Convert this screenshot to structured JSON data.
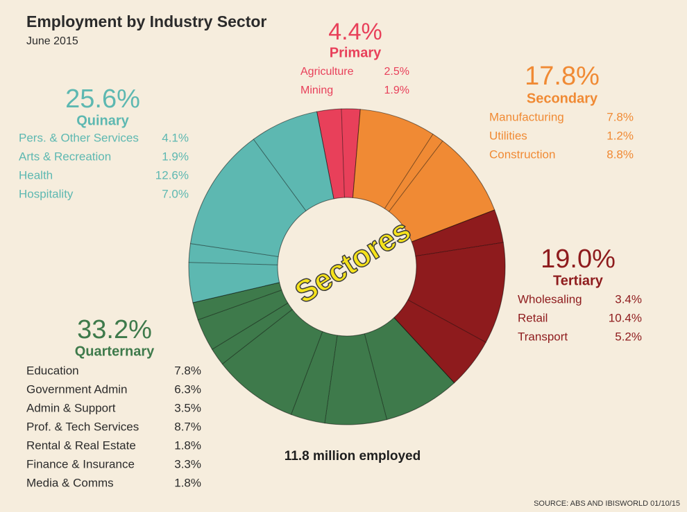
{
  "chart_data": {
    "type": "pie",
    "title": "Employment by Industry Sector",
    "subtitle": "June 2015",
    "center_note": "11.8 million employed",
    "overlay_text": "Sectores",
    "source": "SOURCE: ABS AND IBISWORLD 01/10/15",
    "donut": true,
    "series": [
      {
        "name": "Primary",
        "color": "#e8405a",
        "total": {
          "value": 4.4,
          "label": "4.4%"
        },
        "categories": [
          "Agriculture",
          "Mining"
        ],
        "values": [
          2.5,
          1.9
        ],
        "value_labels": [
          "2.5%",
          "1.9%"
        ]
      },
      {
        "name": "Secondary",
        "color": "#f08a34",
        "total": {
          "value": 17.8,
          "label": "17.8%"
        },
        "categories": [
          "Manufacturing",
          "Utilities",
          "Construction"
        ],
        "values": [
          7.8,
          1.2,
          8.8
        ],
        "value_labels": [
          "7.8%",
          "1.2%",
          "8.8%"
        ]
      },
      {
        "name": "Tertiary",
        "color": "#8e1b1d",
        "total": {
          "value": 19.0,
          "label": "19.0%"
        },
        "categories": [
          "Wholesaling",
          "Retail",
          "Transport"
        ],
        "values": [
          3.4,
          10.4,
          5.2
        ],
        "value_labels": [
          "3.4%",
          "10.4%",
          "5.2%"
        ]
      },
      {
        "name": "Quarternary",
        "color": "#3e7a4b",
        "total": {
          "value": 33.2,
          "label": "33.2%"
        },
        "categories": [
          "Education",
          "Government Admin",
          "Admin & Support",
          "Prof. & Tech Services",
          "Rental & Real Estate",
          "Finance & Insurance",
          "Media & Comms"
        ],
        "values": [
          7.8,
          6.3,
          3.5,
          8.7,
          1.8,
          3.3,
          1.8
        ],
        "value_labels": [
          "7.8%",
          "6.3%",
          "3.5%",
          "8.7%",
          "1.8%",
          "3.3%",
          "1.8%"
        ]
      },
      {
        "name": "Quinary",
        "color": "#5db8b1",
        "total": {
          "value": 25.6,
          "label": "25.6%"
        },
        "categories": [
          "Pers. & Other Services",
          "Arts & Recreation",
          "Health",
          "Hospitality"
        ],
        "values": [
          4.1,
          1.9,
          12.6,
          7.0
        ],
        "value_labels": [
          "4.1%",
          "1.9%",
          "12.6%",
          "7.0%"
        ]
      }
    ]
  }
}
